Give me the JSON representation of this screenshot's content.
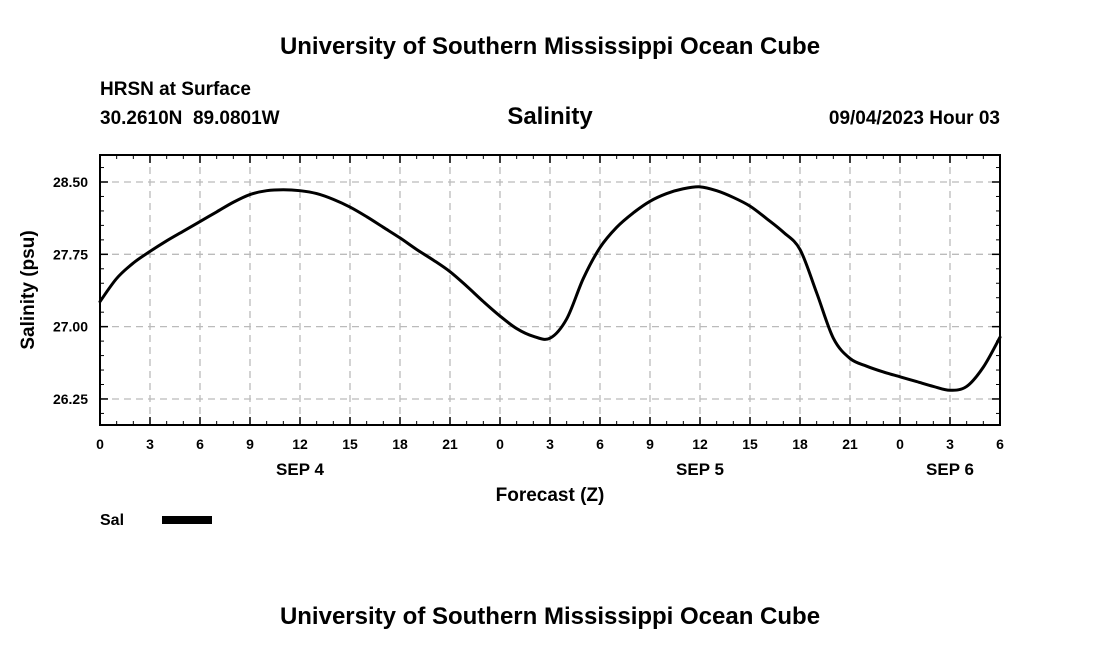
{
  "header": {
    "title_top": "University of Southern Mississippi Ocean Cube",
    "station": "HRSN at Surface",
    "coords": "30.2610N  89.0801W",
    "variable": "Salinity",
    "datetime": "09/04/2023 Hour 03",
    "title_bottom": "University of Southern Mississippi Ocean Cube"
  },
  "legend": {
    "label": "Sal"
  },
  "colors": {
    "line": "#000000",
    "grid": "#bbbbbb",
    "frame": "#000000"
  },
  "chart_data": {
    "type": "line",
    "title": "Salinity",
    "xlabel": "Forecast (Z)",
    "ylabel": "Salinity (psu)",
    "x_unit": "hours from 2023-09-04 00Z",
    "xlim": [
      0,
      54
    ],
    "ylim": [
      25.98,
      28.78
    ],
    "grid": true,
    "legend_position": "bottom-left",
    "x_ticks": [
      {
        "x": 0,
        "label": "0"
      },
      {
        "x": 3,
        "label": "3"
      },
      {
        "x": 6,
        "label": "6"
      },
      {
        "x": 9,
        "label": "9"
      },
      {
        "x": 12,
        "label": "12"
      },
      {
        "x": 15,
        "label": "15"
      },
      {
        "x": 18,
        "label": "18"
      },
      {
        "x": 21,
        "label": "21"
      },
      {
        "x": 24,
        "label": "0"
      },
      {
        "x": 27,
        "label": "3"
      },
      {
        "x": 30,
        "label": "6"
      },
      {
        "x": 33,
        "label": "9"
      },
      {
        "x": 36,
        "label": "12"
      },
      {
        "x": 39,
        "label": "15"
      },
      {
        "x": 42,
        "label": "18"
      },
      {
        "x": 45,
        "label": "21"
      },
      {
        "x": 48,
        "label": "0"
      },
      {
        "x": 51,
        "label": "3"
      },
      {
        "x": 54,
        "label": "6"
      }
    ],
    "date_labels": [
      {
        "x": 12,
        "label": "SEP 4"
      },
      {
        "x": 36,
        "label": "SEP 5"
      },
      {
        "x": 51,
        "label": "SEP 6"
      }
    ],
    "y_ticks": [
      {
        "y": 26.25,
        "label": "26.25"
      },
      {
        "y": 27.0,
        "label": "27.00"
      },
      {
        "y": 27.75,
        "label": "27.75"
      },
      {
        "y": 28.5,
        "label": "28.50"
      }
    ],
    "series": [
      {
        "name": "Sal",
        "x": [
          0,
          1,
          2,
          3,
          4,
          5,
          6,
          7,
          8,
          9,
          10,
          11,
          12,
          13,
          14,
          15,
          16,
          17,
          18,
          19,
          20,
          21,
          22,
          23,
          24,
          25,
          26,
          27,
          28,
          29,
          30,
          31,
          32,
          33,
          34,
          35,
          36,
          37,
          38,
          39,
          40,
          41,
          42,
          43,
          44,
          45,
          46,
          47,
          48,
          49,
          50,
          51,
          52,
          53,
          54
        ],
        "values": [
          27.26,
          27.5,
          27.66,
          27.78,
          27.89,
          27.99,
          28.09,
          28.19,
          28.29,
          28.37,
          28.41,
          28.42,
          28.41,
          28.38,
          28.32,
          28.24,
          28.14,
          28.03,
          27.92,
          27.8,
          27.69,
          27.57,
          27.42,
          27.26,
          27.11,
          26.98,
          26.9,
          26.88,
          27.08,
          27.5,
          27.82,
          28.03,
          28.18,
          28.3,
          28.38,
          28.43,
          28.45,
          28.41,
          28.34,
          28.25,
          28.12,
          27.98,
          27.8,
          27.35,
          26.88,
          26.67,
          26.59,
          26.53,
          26.48,
          26.43,
          26.38,
          26.34,
          26.38,
          26.58,
          26.89
        ]
      }
    ]
  }
}
